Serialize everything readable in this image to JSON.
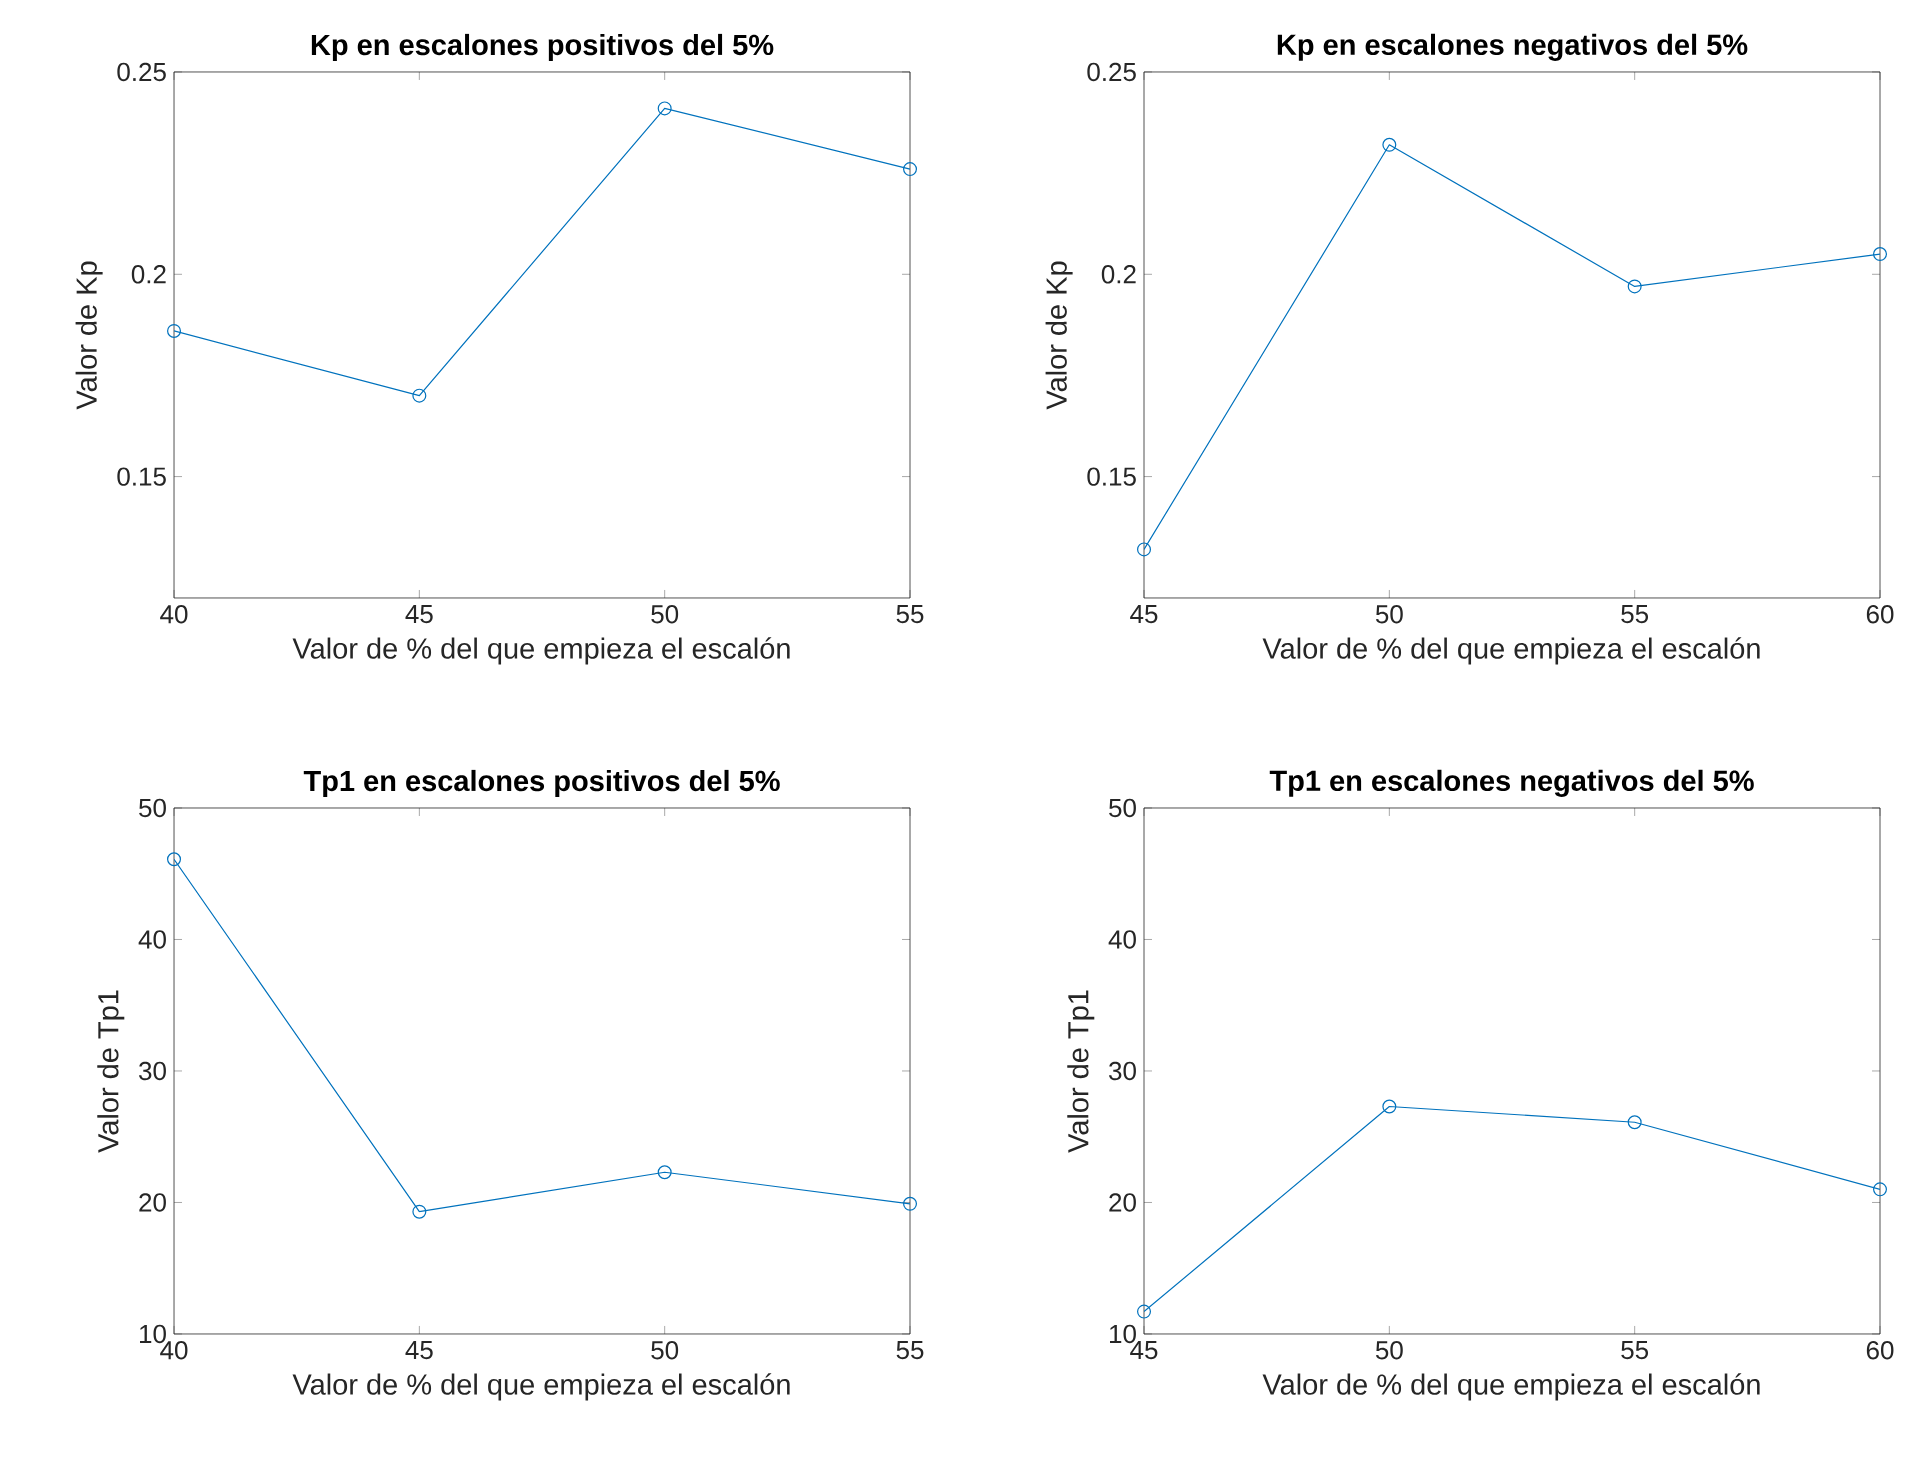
{
  "chart_data": [
    {
      "type": "line",
      "title": "Kp en escalones positivos del 5%",
      "xlabel": "Valor de % del que empieza el escalón",
      "ylabel": "Valor de Kp",
      "x": [
        40,
        45,
        50,
        55
      ],
      "values": [
        0.186,
        0.17,
        0.241,
        0.226
      ],
      "color": "#0072bd",
      "marker": "circle",
      "line_style": "solid",
      "xlim": [
        40,
        55
      ],
      "ylim": [
        0.12,
        0.25
      ],
      "xticks": [
        40,
        45,
        50,
        55
      ],
      "yticks": [
        0.15,
        0.2,
        0.25
      ]
    },
    {
      "type": "line",
      "title": "Kp en escalones negativos del 5%",
      "xlabel": "Valor de % del que empieza el escalón",
      "ylabel": "Valor de Kp",
      "x": [
        45,
        50,
        55,
        60
      ],
      "values": [
        0.132,
        0.232,
        0.197,
        0.205
      ],
      "color": "#0072bd",
      "marker": "circle",
      "line_style": "solid",
      "xlim": [
        45,
        60
      ],
      "ylim": [
        0.12,
        0.25
      ],
      "xticks": [
        45,
        50,
        55,
        60
      ],
      "yticks": [
        0.15,
        0.2,
        0.25
      ]
    },
    {
      "type": "line",
      "title": "Tp1 en escalones positivos del 5%",
      "xlabel": "Valor de % del que empieza el escalón",
      "ylabel": "Valor de Tp1",
      "x": [
        40,
        45,
        50,
        55
      ],
      "values": [
        46.1,
        19.3,
        22.3,
        19.9
      ],
      "color": "#0072bd",
      "marker": "circle",
      "line_style": "solid",
      "xlim": [
        40,
        55
      ],
      "ylim": [
        10,
        50
      ],
      "xticks": [
        40,
        45,
        50,
        55
      ],
      "yticks": [
        10,
        20,
        30,
        40,
        50
      ]
    },
    {
      "type": "line",
      "title": "Tp1 en escalones negativos del 5%",
      "xlabel": "Valor de % del que empieza el escalón",
      "ylabel": "Valor de Tp1",
      "x": [
        45,
        50,
        55,
        60
      ],
      "values": [
        11.7,
        27.3,
        26.1,
        21.0
      ],
      "color": "#0072bd",
      "marker": "circle",
      "line_style": "solid",
      "xlim": [
        45,
        60
      ],
      "ylim": [
        10,
        50
      ],
      "xticks": [
        45,
        50,
        55,
        60
      ],
      "yticks": [
        10,
        20,
        30,
        40,
        50
      ]
    }
  ]
}
